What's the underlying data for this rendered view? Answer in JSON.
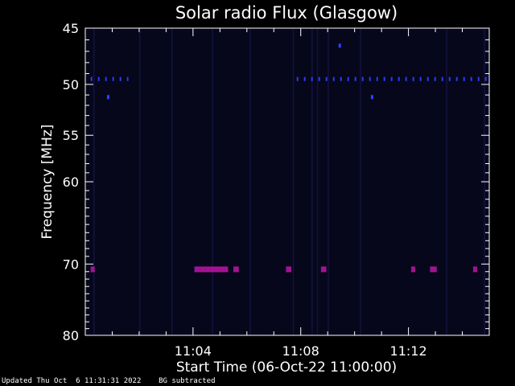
{
  "chart_data": {
    "type": "heatmap",
    "title": "Solar radio Flux (Glasgow)",
    "xlabel": "Start Time (06-Oct-22 11:00:00)",
    "ylabel": "Frequency [MHz]",
    "x_range_minutes": [
      0,
      15
    ],
    "y_range_mhz": [
      45,
      80
    ],
    "y_scale": "log",
    "y_ticks": [
      45,
      50,
      55,
      60,
      70,
      80
    ],
    "x_ticks": [
      {
        "minute": 4,
        "label": "11:04"
      },
      {
        "minute": 8,
        "label": "11:08"
      },
      {
        "minute": 12,
        "label": "11:12"
      }
    ],
    "grid": false,
    "background_color": "#07071c",
    "interference_bands": [
      {
        "freq_mhz": 49.5,
        "minute_start": 0.2,
        "minute_end": 1.6,
        "style": "dashed",
        "color": "#2a3cff"
      },
      {
        "freq_mhz": 49.5,
        "minute_start": 7.85,
        "minute_end": 15.0,
        "style": "dashed",
        "color": "#2a3cff"
      },
      {
        "freq_mhz": 70.7,
        "minute_start": 0.2,
        "minute_end": 0.35,
        "style": "solid",
        "color": "#b0108a"
      },
      {
        "freq_mhz": 70.7,
        "minute_start": 4.05,
        "minute_end": 5.3,
        "style": "solid",
        "color": "#b0108a"
      },
      {
        "freq_mhz": 70.7,
        "minute_start": 5.5,
        "minute_end": 5.7,
        "style": "solid",
        "color": "#b0108a"
      },
      {
        "freq_mhz": 70.7,
        "minute_start": 7.45,
        "minute_end": 7.65,
        "style": "solid",
        "color": "#b0108a"
      },
      {
        "freq_mhz": 70.7,
        "minute_start": 8.75,
        "minute_end": 8.95,
        "style": "solid",
        "color": "#b0108a"
      },
      {
        "freq_mhz": 70.7,
        "minute_start": 12.1,
        "minute_end": 12.25,
        "style": "solid",
        "color": "#b0108a"
      },
      {
        "freq_mhz": 70.7,
        "minute_start": 12.8,
        "minute_end": 13.05,
        "style": "solid",
        "color": "#b0108a"
      },
      {
        "freq_mhz": 70.7,
        "minute_start": 14.4,
        "minute_end": 14.55,
        "style": "solid",
        "color": "#b0108a"
      }
    ],
    "point_marks": [
      {
        "freq_mhz": 51.2,
        "minute": 0.85
      },
      {
        "freq_mhz": 51.2,
        "minute": 10.65
      },
      {
        "freq_mhz": 46.5,
        "minute": 9.45
      }
    ],
    "vertical_streaks_minutes": [
      0.3,
      2.0,
      3.2,
      4.7,
      6.1,
      7.7,
      8.4,
      8.6,
      9.0,
      10.2,
      13.4,
      14.8
    ]
  },
  "footer": {
    "updated": "Updated Thu Oct  6 11:31:31 2022",
    "note": "BG subtracted"
  }
}
